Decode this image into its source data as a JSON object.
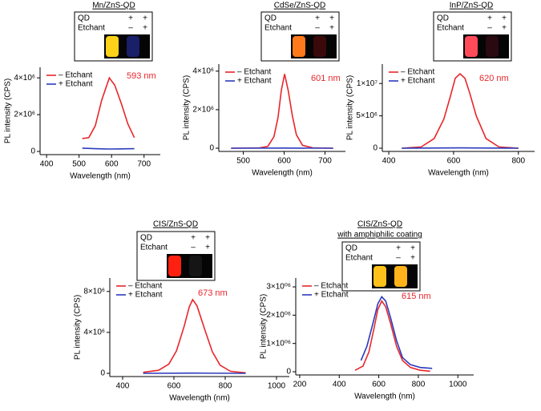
{
  "chart_data": [
    {
      "type": "line",
      "title": "Mn/ZnS-QD",
      "inset": {
        "rows": [
          [
            "QD",
            "+",
            "+"
          ],
          [
            "Etchant",
            "–",
            "+"
          ]
        ]
      },
      "annotation": "593 nm",
      "xlabel": "Wavelength (nm)",
      "ylabel": "PL intensity (CPS)",
      "xlim": [
        380,
        750
      ],
      "xticks": [
        400,
        500,
        600,
        700
      ],
      "ylim": [
        0,
        4400000
      ],
      "yticks": [
        0,
        {
          "value": 2000000,
          "label": "2×10⁶"
        },
        {
          "value": 4000000,
          "label": "4×10⁶"
        }
      ],
      "series": [
        {
          "name": "– Etchant",
          "color": "#e8262a",
          "x": [
            510,
            530,
            550,
            570,
            593,
            610,
            630,
            650,
            670
          ],
          "values": [
            700000,
            750000,
            1400000,
            2800000,
            4000000,
            3600000,
            2600000,
            1500000,
            750000
          ]
        },
        {
          "name": "+ Etchant",
          "color": "#2b3bbd",
          "x": [
            510,
            550,
            593,
            630,
            670
          ],
          "values": [
            180000,
            150000,
            130000,
            140000,
            150000
          ]
        }
      ]
    },
    {
      "type": "line",
      "title": "CdSe/ZnS-QD",
      "inset": {
        "rows": [
          [
            "QD",
            "+",
            "+"
          ],
          [
            "Etchant",
            "–",
            "+"
          ]
        ]
      },
      "annotation": "601 nm",
      "xlabel": "Wavelength (nm)",
      "ylabel": "PL intensity (CPS)",
      "xlim": [
        440,
        750
      ],
      "xticks": [
        500,
        600,
        700
      ],
      "ylim": [
        0,
        4200000
      ],
      "yticks": [
        0,
        {
          "value": 2000000,
          "label": "2×10⁶"
        },
        {
          "value": 4000000,
          "label": "4×10⁶"
        }
      ],
      "series": [
        {
          "name": "– Etchant",
          "color": "#e8262a",
          "x": [
            470,
            540,
            560,
            575,
            585,
            593,
            601,
            610,
            620,
            630,
            645,
            670,
            720
          ],
          "values": [
            0,
            20000,
            100000,
            600000,
            1600000,
            3000000,
            3850000,
            3000000,
            1700000,
            700000,
            150000,
            20000,
            0
          ]
        },
        {
          "name": "+ Etchant",
          "color": "#2b3bbd",
          "x": [
            470,
            600,
            720
          ],
          "values": [
            0,
            10000,
            0
          ]
        }
      ]
    },
    {
      "type": "line",
      "title": "InP/ZnS-QD",
      "inset": {
        "rows": [
          [
            "QD",
            "+",
            "+"
          ],
          [
            "Etchant",
            "–",
            "+"
          ]
        ]
      },
      "annotation": "620 nm",
      "xlabel": "Wavelength (nm)",
      "ylabel": "PL intensity (CPS)",
      "xlim": [
        380,
        850
      ],
      "xticks": [
        400,
        600,
        800
      ],
      "ylim": [
        0,
        12500000
      ],
      "yticks": [
        0,
        {
          "value": 5000000,
          "label": "5×10⁶"
        },
        {
          "value": 10000000,
          "label": "1×10⁷"
        }
      ],
      "series": [
        {
          "name": "– Etchant",
          "color": "#e8262a",
          "x": [
            440,
            500,
            540,
            570,
            590,
            605,
            620,
            635,
            650,
            670,
            700,
            740,
            800
          ],
          "values": [
            0,
            200000,
            1500000,
            4500000,
            8000000,
            10800000,
            11500000,
            10800000,
            8500000,
            5000000,
            1500000,
            200000,
            0
          ]
        },
        {
          "name": "+ Etchant",
          "color": "#2b3bbd",
          "x": [
            440,
            620,
            800
          ],
          "values": [
            0,
            50000,
            0
          ]
        }
      ]
    },
    {
      "type": "line",
      "title": "CIS/ZnS-QD",
      "inset": {
        "rows": [
          [
            "QD",
            "+",
            "+"
          ],
          [
            "Etchant",
            "–",
            "+"
          ]
        ]
      },
      "annotation": "673 nm",
      "xlabel": "Wavelength (nm)",
      "ylabel": "PL intensity (CPS)",
      "xlim": [
        350,
        1050
      ],
      "xticks": [
        400,
        600,
        800,
        1000
      ],
      "ylim": [
        0,
        9000000
      ],
      "yticks": [
        0,
        {
          "value": 4000000,
          "label": "4×10⁶"
        },
        {
          "value": 8000000,
          "label": "8×10⁶"
        }
      ],
      "series": [
        {
          "name": "– Etchant",
          "color": "#e8262a",
          "x": [
            480,
            540,
            580,
            610,
            640,
            660,
            673,
            690,
            720,
            750,
            780,
            820,
            880
          ],
          "values": [
            100000,
            300000,
            900000,
            2200000,
            4600000,
            6500000,
            7200000,
            6600000,
            4300000,
            2100000,
            800000,
            200000,
            50000
          ]
        },
        {
          "name": "+ Etchant",
          "color": "#2b3bbd",
          "x": [
            480,
            680,
            880
          ],
          "values": [
            0,
            20000,
            0
          ]
        }
      ]
    },
    {
      "type": "line",
      "title": "CIS/ZnS-QD",
      "subtitle": "with amphiphilic coating",
      "inset": {
        "rows": [
          [
            "QD",
            "+",
            "+"
          ],
          [
            "Etchant",
            "–",
            "+"
          ]
        ]
      },
      "annotation": "615 nm",
      "xlabel": "Wavelength (nm)",
      "ylabel": "PL intensity (CPS)",
      "xlim": [
        180,
        1080
      ],
      "xticks": [
        200,
        400,
        600,
        800,
        1000
      ],
      "ylim": [
        0,
        3200000
      ],
      "yticks": [
        0,
        {
          "value": 1000000,
          "label": "1×10⁰⁶"
        },
        {
          "value": 2000000,
          "label": "2×10⁰⁶"
        },
        {
          "value": 3000000,
          "label": "3×10⁰⁶"
        }
      ],
      "series": [
        {
          "name": "– Etchant",
          "color": "#e8262a",
          "x": [
            480,
            520,
            550,
            575,
            595,
            615,
            635,
            660,
            690,
            720,
            760,
            810,
            860
          ],
          "values": [
            50000,
            200000,
            700000,
            1500000,
            2200000,
            2500000,
            2300000,
            1700000,
            900000,
            400000,
            150000,
            50000,
            20000
          ]
        },
        {
          "name": "+ Etchant",
          "color": "#2b3bbd",
          "x": [
            510,
            540,
            570,
            595,
            615,
            635,
            660,
            690,
            720,
            760,
            810,
            870
          ],
          "values": [
            400000,
            900000,
            1700000,
            2400000,
            2650000,
            2500000,
            1900000,
            1100000,
            500000,
            250000,
            150000,
            120000
          ]
        }
      ]
    }
  ]
}
